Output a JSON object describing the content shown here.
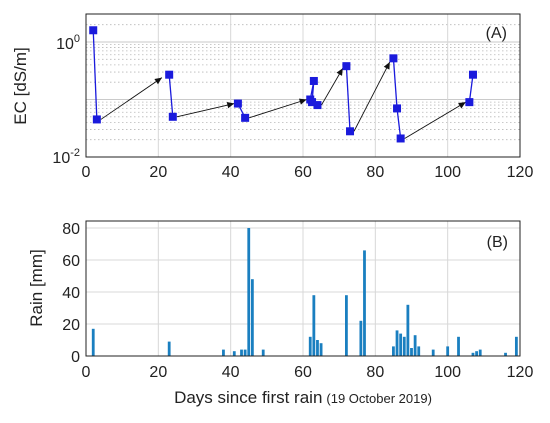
{
  "colors": {
    "ec_series": "#1a1adc",
    "rain_bars": "#1a7fc0",
    "arrows": "#111111",
    "grid": "#d8d8d8",
    "minor_grid": "#b8b8b8"
  },
  "chart_data": [
    {
      "type": "line",
      "panel_label": "(A)",
      "xlabel": "",
      "ylabel": "EC [dS/m]",
      "xlim": [
        0,
        120
      ],
      "ylim": [
        0.01,
        2
      ],
      "yscale": "log",
      "x_ticks": [
        "0",
        "20",
        "40",
        "60",
        "80",
        "100",
        "120"
      ],
      "y_ticks": [
        {
          "base": "10",
          "exp": "0",
          "value": 1
        },
        {
          "base": "10",
          "exp": "-2",
          "value": 0.01
        }
      ],
      "grid": true,
      "series": [
        {
          "marker": "square",
          "segments": [
            [
              [
                2,
                1.6
              ],
              [
                3,
                0.045
              ]
            ],
            [
              [
                23,
                0.27
              ],
              [
                24,
                0.05
              ]
            ],
            [
              [
                42,
                0.085
              ],
              [
                44,
                0.048
              ]
            ],
            [
              [
                62,
                0.1
              ],
              [
                63,
                0.21
              ],
              [
                62.5,
                0.09
              ],
              [
                64,
                0.08
              ]
            ],
            [
              [
                72,
                0.38
              ],
              [
                73,
                0.028
              ]
            ],
            [
              [
                85,
                0.52
              ],
              [
                86,
                0.07
              ],
              [
                87,
                0.021
              ]
            ],
            [
              [
                106,
                0.09
              ],
              [
                107,
                0.27
              ]
            ]
          ]
        }
      ],
      "arrows": [
        {
          "from": [
            3,
            0.045
          ],
          "to": [
            21,
            0.24
          ]
        },
        {
          "from": [
            24,
            0.05
          ],
          "to": [
            41,
            0.085
          ]
        },
        {
          "from": [
            44,
            0.048
          ],
          "to": [
            61,
            0.1
          ]
        },
        {
          "from": [
            64,
            0.08
          ],
          "to": [
            71,
            0.35
          ]
        },
        {
          "from": [
            73,
            0.028
          ],
          "to": [
            84,
            0.45
          ]
        },
        {
          "from": [
            87,
            0.021
          ],
          "to": [
            105,
            0.09
          ]
        }
      ]
    },
    {
      "type": "bar",
      "panel_label": "(B)",
      "xlabel": "Days since first rain",
      "xlabel_suffix": "(19 October 2019)",
      "ylabel": "Rain [mm]",
      "xlim": [
        0,
        120
      ],
      "ylim": [
        0,
        80
      ],
      "x_ticks": [
        "0",
        "20",
        "40",
        "60",
        "80",
        "100",
        "120"
      ],
      "y_ticks": [
        "0",
        "20",
        "40",
        "60",
        "80"
      ],
      "grid": true,
      "x": [
        2,
        23,
        38,
        41,
        43,
        44,
        45,
        46,
        49,
        62,
        63,
        64,
        65,
        72,
        76,
        77,
        85,
        86,
        87,
        88,
        89,
        90,
        91,
        92,
        96,
        100,
        103,
        107,
        108,
        109,
        116,
        119
      ],
      "values": [
        17,
        9,
        4,
        3,
        4,
        4,
        80,
        48,
        4,
        12,
        38,
        10,
        8,
        38,
        22,
        66,
        6,
        16,
        14,
        12,
        32,
        5,
        13,
        6,
        4,
        6,
        12,
        2,
        3,
        4,
        2,
        12
      ]
    }
  ]
}
